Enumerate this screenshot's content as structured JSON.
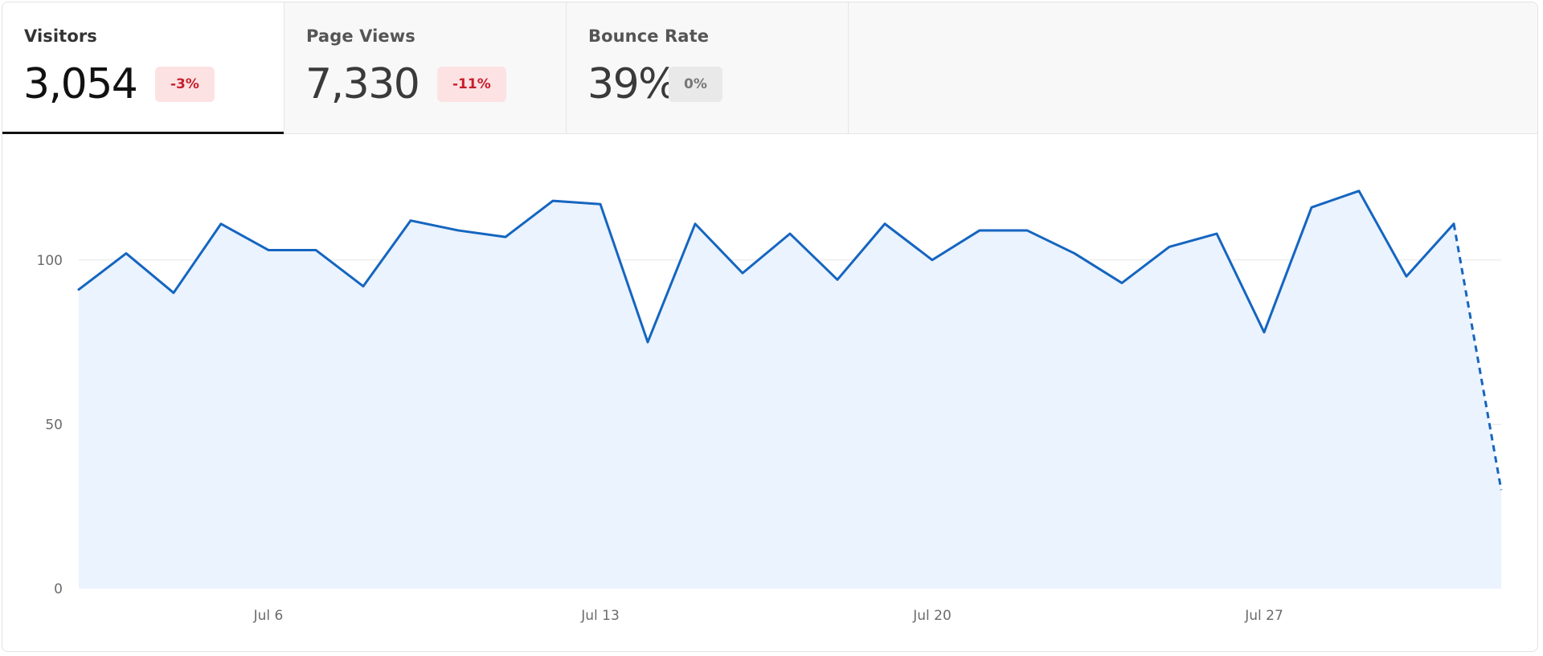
{
  "tabs": [
    {
      "label": "Visitors",
      "value": "3,054",
      "delta": "-3%",
      "delta_tone": "negative",
      "active": true
    },
    {
      "label": "Page Views",
      "value": "7,330",
      "delta": "-11%",
      "delta_tone": "negative",
      "active": false
    },
    {
      "label": "Bounce Rate",
      "value": "39%",
      "delta": "0%",
      "delta_tone": "neutral",
      "active": false
    }
  ],
  "colors": {
    "line": "#1565c0",
    "area": "#eaf3fe",
    "grid": "#e6e6e6",
    "badge_negative_bg": "#fde2e3",
    "badge_negative_text": "#c81e2d",
    "badge_neutral_bg": "#e9e9e9",
    "badge_neutral_text": "#777777"
  },
  "chart_data": {
    "type": "area",
    "x": [
      "Jul 2",
      "Jul 3",
      "Jul 4",
      "Jul 5",
      "Jul 6",
      "Jul 7",
      "Jul 8",
      "Jul 9",
      "Jul 10",
      "Jul 11",
      "Jul 12",
      "Jul 13",
      "Jul 14",
      "Jul 15",
      "Jul 16",
      "Jul 17",
      "Jul 18",
      "Jul 19",
      "Jul 20",
      "Jul 21",
      "Jul 22",
      "Jul 23",
      "Jul 24",
      "Jul 25",
      "Jul 26",
      "Jul 27",
      "Jul 28",
      "Jul 29",
      "Jul 30",
      "Jul 31",
      "Aug 1"
    ],
    "x_tick_labels": [
      "Jul 6",
      "Jul 13",
      "Jul 20",
      "Jul 27"
    ],
    "y_tick_labels": [
      "0",
      "50",
      "100"
    ],
    "ylim": [
      0,
      130
    ],
    "series": [
      {
        "values": [
          91,
          102,
          90,
          111,
          103,
          103,
          92,
          112,
          109,
          107,
          118,
          117,
          75,
          111,
          96,
          108,
          94,
          111,
          100,
          109,
          109,
          102,
          93,
          104,
          108,
          78,
          116,
          121,
          95,
          111,
          30
        ],
        "dashed_last_segment": true
      }
    ],
    "grid": true,
    "title": "",
    "xlabel": "",
    "ylabel": ""
  }
}
